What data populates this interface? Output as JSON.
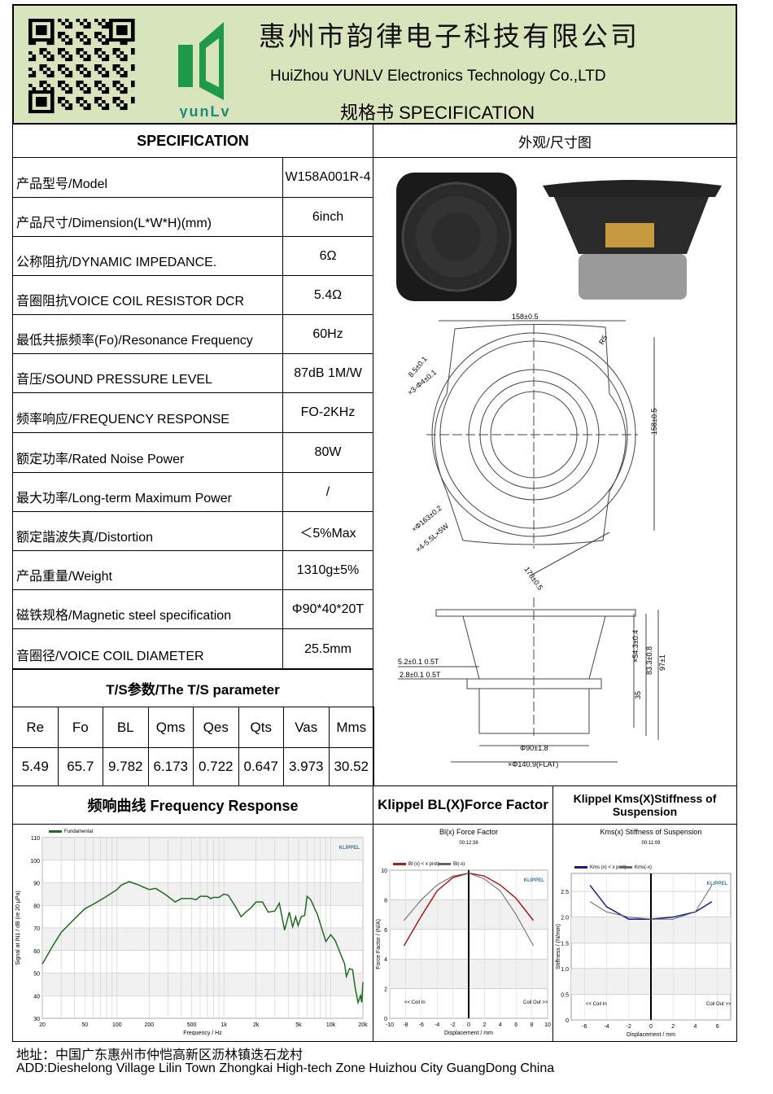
{
  "header": {
    "company_cn": "惠州市韵律电子科技有限公司",
    "company_en": "HuiZhou YUNLV Electronics Technology Co.,LTD",
    "doc_title": "规格书  SPECIFICATION",
    "logo_text": "YUNLV",
    "bg_color": "#d8e4bc",
    "logo_color": "#1f9a48"
  },
  "spec": {
    "title": "SPECIFICATION",
    "rows": [
      {
        "label": "产品型号/Model",
        "value": "W158A001R-4"
      },
      {
        "label": "产品尺寸/Dimension(L*W*H)(mm)",
        "value": "6inch"
      },
      {
        "label": "公称阻抗/DYNAMIC IMPEDANCE.",
        "value": "6Ω"
      },
      {
        "label": "音圈阻抗VOICE COIL RESISTOR DCR",
        "value": "5.4Ω"
      },
      {
        "label": "最低共振频率(Fo)/Resonance Frequency",
        "value": "60Hz"
      },
      {
        "label": "音压/SOUND PRESSURE LEVEL",
        "value": "87dB 1M/W"
      },
      {
        "label": "频率响应/FREQUENCY RESPONSE",
        "value": "FO-2KHz"
      },
      {
        "label": "额定功率/Rated Noise Power",
        "value": "80W"
      },
      {
        "label": "最大功率/Long-term Maximum Power",
        "value": "/"
      },
      {
        "label": "额定諧波失真/Distortion",
        "value": "＜5%Max"
      },
      {
        "label": "产品重量/Weight",
        "value": "1310g±5%"
      },
      {
        "label": "磁铁规格/Magnetic steel specification",
        "value": "Φ90*40*20T"
      },
      {
        "label": "音圈径/VOICE COIL DIAMETER",
        "value": "25.5mm"
      }
    ]
  },
  "ts": {
    "title": "T/S参数/The T/S parameter",
    "headers": [
      "Re",
      "Fo",
      "BL",
      "Qms",
      "Qes",
      "Qts",
      "Vas",
      "Mms"
    ],
    "values": [
      "5.49",
      "65.7",
      "9.782",
      "6.173",
      "0.722",
      "0.647",
      "3.973",
      "30.52"
    ]
  },
  "drawing": {
    "title": "外观/尺寸图",
    "dims": [
      "158±0.5",
      "158±0.5",
      "8.5±0.1",
      "×3-Φ4±0.1",
      "R5",
      "×Φ163±0.2",
      "×4-5.5L×5W",
      "178±0.5",
      "5.2±0.1 0.5T",
      "2.8±0.1 0.5T",
      "×54.3±0.4",
      "83.3±0.8",
      "97±1",
      "35",
      "Φ90±1.8",
      "×Φ140.9(FLAT)"
    ]
  },
  "sections": {
    "freq_title": "频响曲线 Frequency Response",
    "bl_title": "Klippel BL(X)Force Factor",
    "kms_title": "Klippel Kms(X)Stiffness of Suspension"
  },
  "chart_data": [
    {
      "type": "line",
      "title": "",
      "xlabel": "Frequency / Hz",
      "ylabel": "Signal at IN1 / dB (re 20 µPa)",
      "xscale": "log",
      "xlim": [
        20,
        20000
      ],
      "ylim": [
        30,
        110
      ],
      "xticks": [
        "20",
        "50",
        "100",
        "200",
        "500",
        "1k",
        "2k",
        "5k",
        "10k",
        "20k"
      ],
      "yticks": [
        "30",
        "40",
        "50",
        "60",
        "70",
        "80",
        "90",
        "100",
        "110"
      ],
      "grid": true,
      "legend": "top-left",
      "watermark": "KLIPPEL",
      "series": [
        {
          "name": "Fundamental",
          "color": "#1e6b1e",
          "x": [
            20,
            25,
            30,
            40,
            50,
            60,
            80,
            100,
            110,
            130,
            160,
            200,
            230,
            280,
            350,
            400,
            500,
            550,
            600,
            700,
            750,
            800,
            900,
            1000,
            1100,
            1300,
            1450,
            1600,
            1800,
            2000,
            2300,
            2600,
            3000,
            3300,
            3700,
            4100,
            4400,
            4700,
            4950,
            5300,
            5700,
            6000,
            6500,
            7500,
            9000,
            10000,
            11000,
            12000,
            13500,
            14000,
            15000,
            16000,
            17000,
            18000,
            19000,
            19500,
            20000
          ],
          "y": [
            54,
            62,
            68,
            74,
            78.5,
            80.5,
            84,
            87,
            89,
            90.5,
            89,
            87,
            87.5,
            85,
            81.5,
            83,
            83,
            82.5,
            84,
            84,
            83,
            83.5,
            83.5,
            85,
            84.5,
            79,
            75,
            77,
            79,
            81.5,
            81.5,
            77,
            77.5,
            81,
            69,
            77,
            70.5,
            75,
            71,
            75,
            75.5,
            84,
            82.5,
            76,
            64,
            67,
            64.5,
            60,
            54,
            48.5,
            52,
            51.5,
            43,
            37,
            40,
            37,
            46
          ]
        }
      ]
    },
    {
      "type": "line",
      "title": "Bl(x) Force Factor",
      "subtitle": "00:12:38",
      "xlabel": "Displacement / mm",
      "ylabel": "Force Factor / (N/A)",
      "xlim": [
        -10,
        10
      ],
      "ylim": [
        0,
        10
      ],
      "xticks": [
        "-10",
        "-8",
        "-6",
        "-4",
        "-2",
        "0",
        "2",
        "4",
        "6",
        "8",
        "10"
      ],
      "yticks": [
        "0",
        "2",
        "4",
        "6",
        "8",
        "10"
      ],
      "annotations": [
        "<< Coil In",
        "Coil Out >>"
      ],
      "watermark": "KLIPPEL",
      "legend": "top-left",
      "series": [
        {
          "name": "Bl (x) < x prot)",
          "color": "#b01818",
          "x": [
            -8.2,
            -6,
            -4,
            -2,
            0,
            2,
            4,
            6,
            8.2
          ],
          "y": [
            4.9,
            6.9,
            8.6,
            9.5,
            9.8,
            9.6,
            9.0,
            8.1,
            6.6
          ]
        },
        {
          "name": "Bl(-x)",
          "color": "#666666",
          "x": [
            -8.2,
            -6,
            -4,
            -2,
            0,
            2,
            4,
            6,
            8.2
          ],
          "y": [
            6.6,
            8.0,
            9.0,
            9.6,
            9.8,
            9.4,
            8.6,
            7.0,
            4.9
          ]
        }
      ]
    },
    {
      "type": "line",
      "title": "Kms(x) Stiffness of Suspension",
      "subtitle": "00:11:09",
      "xlabel": "Displacement / mm",
      "ylabel": "Stiffness / (N/mm)",
      "xlim": [
        -7.2,
        7.2
      ],
      "ylim": [
        0,
        2.85
      ],
      "xticks": [
        "-6",
        "-4",
        "-2",
        "0",
        "2",
        "4",
        "6"
      ],
      "yticks": [
        "0",
        "0.5",
        "1.0",
        "1.5",
        "2.0",
        "2.5"
      ],
      "annotations": [
        "<< Coil In",
        "Coil Out >>"
      ],
      "watermark": "KLIPPEL",
      "legend": "top-left",
      "series": [
        {
          "name": "Kms (x) < x prot)",
          "color": "#1a1a8c",
          "x": [
            -5.5,
            -4,
            -2,
            0,
            2,
            4,
            5.5
          ],
          "y": [
            2.62,
            2.2,
            1.96,
            1.96,
            2.0,
            2.1,
            2.3
          ]
        },
        {
          "name": "Kms(-x)",
          "color": "#666666",
          "x": [
            -5.5,
            -4,
            -2,
            0,
            2,
            4,
            5.5
          ],
          "y": [
            2.3,
            2.1,
            2.0,
            1.96,
            1.96,
            2.1,
            2.62
          ]
        }
      ]
    }
  ],
  "footer": {
    "address_cn": "地址：中国广东惠州市仲恺高新区沥林镇迭石龙村",
    "address_en": "ADD:Dieshelong Village Lilin  Town Zhongkai High-tech Zone Huizhou City GuangDong China"
  }
}
